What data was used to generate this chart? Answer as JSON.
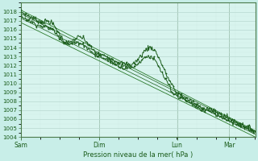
{
  "title": "",
  "xlabel": "Pression niveau de la mer( hPa )",
  "bg_color": "#c8eee8",
  "plot_bg": "#d8f4ee",
  "grid_color_major": "#b8d8d0",
  "grid_color_minor": "#d0ecE6",
  "line_dark": "#1a5c1a",
  "line_med": "#2a7a2a",
  "line_light": "#4aaa4a",
  "ylim": [
    1004,
    1019
  ],
  "yticks": [
    1004,
    1005,
    1006,
    1007,
    1008,
    1009,
    1010,
    1011,
    1012,
    1013,
    1014,
    1015,
    1016,
    1017,
    1018
  ],
  "xtick_labels": [
    "Sam",
    "Dim",
    "Lun",
    "Mar"
  ],
  "xtick_positions": [
    0.0,
    0.333,
    0.667,
    0.889
  ],
  "total_points": 360,
  "spine_color": "#4a7a4a"
}
